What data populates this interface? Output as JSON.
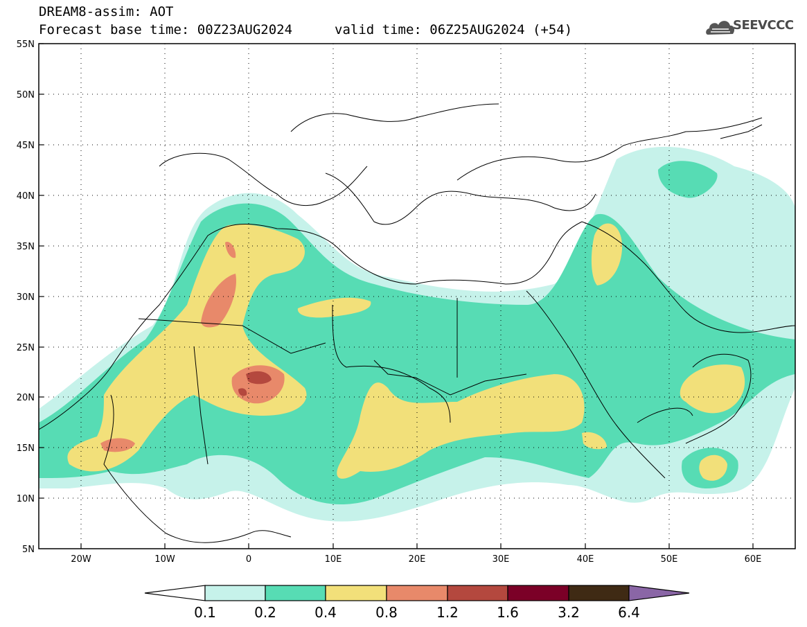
{
  "header": {
    "model_line": "DREAM8-assim: AOT",
    "base_time": "Forecast base time: 00Z23AUG2024",
    "valid_time": "valid time: 06Z25AUG2024 (+54)",
    "logo_text": "SEEVCCC"
  },
  "map": {
    "lat_labels": [
      "55N",
      "50N",
      "45N",
      "40N",
      "35N",
      "30N",
      "25N",
      "20N",
      "15N",
      "10N",
      "5N"
    ],
    "lon_labels": [
      "20W",
      "10W",
      "0",
      "10E",
      "20E",
      "30E",
      "40E",
      "50E",
      "60E"
    ],
    "extent": {
      "lon": [
        -25,
        65
      ],
      "lat": [
        5,
        55
      ]
    },
    "grid": "dotted"
  },
  "legend": {
    "values": [
      "0.1",
      "0.2",
      "0.4",
      "0.8",
      "1.2",
      "1.6",
      "3.2",
      "6.4"
    ],
    "colors": [
      "#ffffff",
      "#c6f2ea",
      "#57dcb4",
      "#f2e07a",
      "#e8896a",
      "#b4483e",
      "#7b0027",
      "#3f2a14",
      "#8a66a6"
    ]
  }
}
